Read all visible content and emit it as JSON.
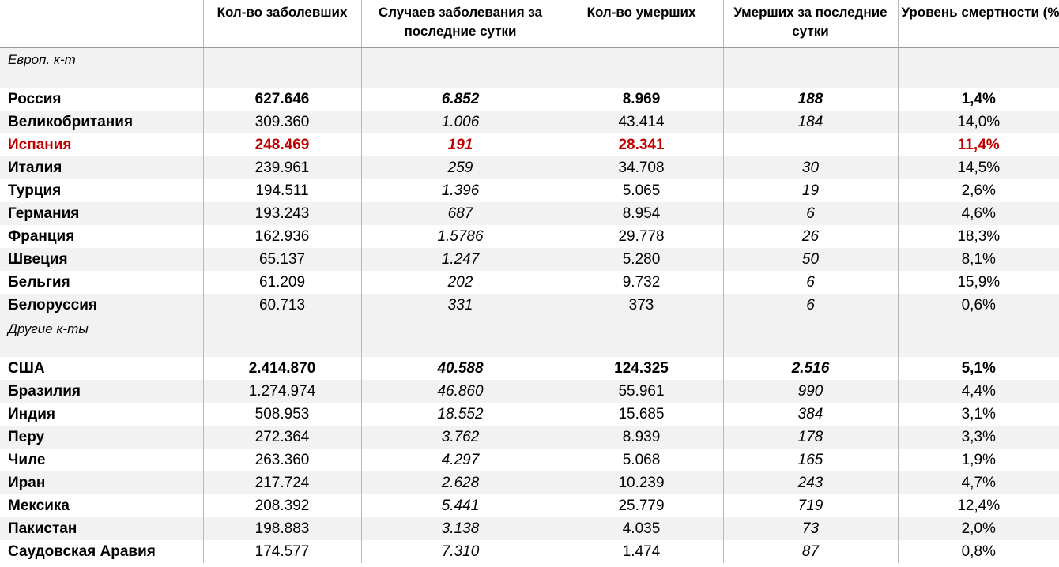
{
  "table": {
    "headers": [
      "",
      "Кол-во заболевших",
      "Случаев заболевания за последние сутки",
      "Кол-во умерших",
      "Умерших за последние сутки",
      "Уровень смертности (%)"
    ],
    "sections": [
      {
        "title": "Европ. к-т",
        "rows": [
          {
            "country": "Россия",
            "cases": "627.646",
            "new_cases": "6.852",
            "deaths": "8.969",
            "new_deaths": "188",
            "mortality": "1,4%",
            "bold": true
          },
          {
            "country": "Великобритания",
            "cases": "309.360",
            "new_cases": "1.006",
            "deaths": "43.414",
            "new_deaths": "184",
            "mortality": "14,0%"
          },
          {
            "country": "Испания",
            "cases": "248.469",
            "new_cases": "191",
            "deaths": "28.341",
            "new_deaths": "",
            "mortality": "11,4%",
            "bold": true,
            "highlight_color": "#c00000"
          },
          {
            "country": "Италия",
            "cases": "239.961",
            "new_cases": "259",
            "deaths": "34.708",
            "new_deaths": "30",
            "mortality": "14,5%"
          },
          {
            "country": "Турция",
            "cases": "194.511",
            "new_cases": "1.396",
            "deaths": "5.065",
            "new_deaths": "19",
            "mortality": "2,6%"
          },
          {
            "country": "Германия",
            "cases": "193.243",
            "new_cases": "687",
            "deaths": "8.954",
            "new_deaths": "6",
            "mortality": "4,6%"
          },
          {
            "country": "Франция",
            "cases": "162.936",
            "new_cases": "1.5786",
            "deaths": "29.778",
            "new_deaths": "26",
            "mortality": "18,3%"
          },
          {
            "country": "Швеция",
            "cases": "65.137",
            "new_cases": "1.247",
            "deaths": "5.280",
            "new_deaths": "50",
            "mortality": "8,1%"
          },
          {
            "country": "Бельгия",
            "cases": "61.209",
            "new_cases": "202",
            "deaths": "9.732",
            "new_deaths": "6",
            "mortality": "15,9%"
          },
          {
            "country": "Белоруссия",
            "cases": "60.713",
            "new_cases": "331",
            "deaths": "373",
            "new_deaths": "6",
            "mortality": "0,6%"
          }
        ]
      },
      {
        "title": "Другие  к-ты",
        "rows": [
          {
            "country": "США",
            "cases": "2.414.870",
            "new_cases": "40.588",
            "deaths": "124.325",
            "new_deaths": "2.516",
            "mortality": "5,1%",
            "bold": true
          },
          {
            "country": "Бразилия",
            "cases": "1.274.974",
            "new_cases": "46.860",
            "deaths": "55.961",
            "new_deaths": "990",
            "mortality": "4,4%"
          },
          {
            "country": "Индия",
            "cases": "508.953",
            "new_cases": "18.552",
            "deaths": "15.685",
            "new_deaths": "384",
            "mortality": "3,1%"
          },
          {
            "country": "Перу",
            "cases": "272.364",
            "new_cases": "3.762",
            "deaths": "8.939",
            "new_deaths": "178",
            "mortality": "3,3%"
          },
          {
            "country": "Чиле",
            "cases": "263.360",
            "new_cases": "4.297",
            "deaths": "5.068",
            "new_deaths": "165",
            "mortality": "1,9%"
          },
          {
            "country": "Иран",
            "cases": "217.724",
            "new_cases": "2.628",
            "deaths": "10.239",
            "new_deaths": "243",
            "mortality": "4,7%"
          },
          {
            "country": "Мексика",
            "cases": "208.392",
            "new_cases": "5.441",
            "deaths": "25.779",
            "new_deaths": "719",
            "mortality": "12,4%"
          },
          {
            "country": "Пакистан",
            "cases": "198.883",
            "new_cases": "3.138",
            "deaths": "4.035",
            "new_deaths": "73",
            "mortality": "2,0%"
          },
          {
            "country": "Саудовская Аравия",
            "cases": "174.577",
            "new_cases": "7.310",
            "deaths": "1.474",
            "new_deaths": "87",
            "mortality": "0,8%"
          }
        ]
      }
    ]
  }
}
